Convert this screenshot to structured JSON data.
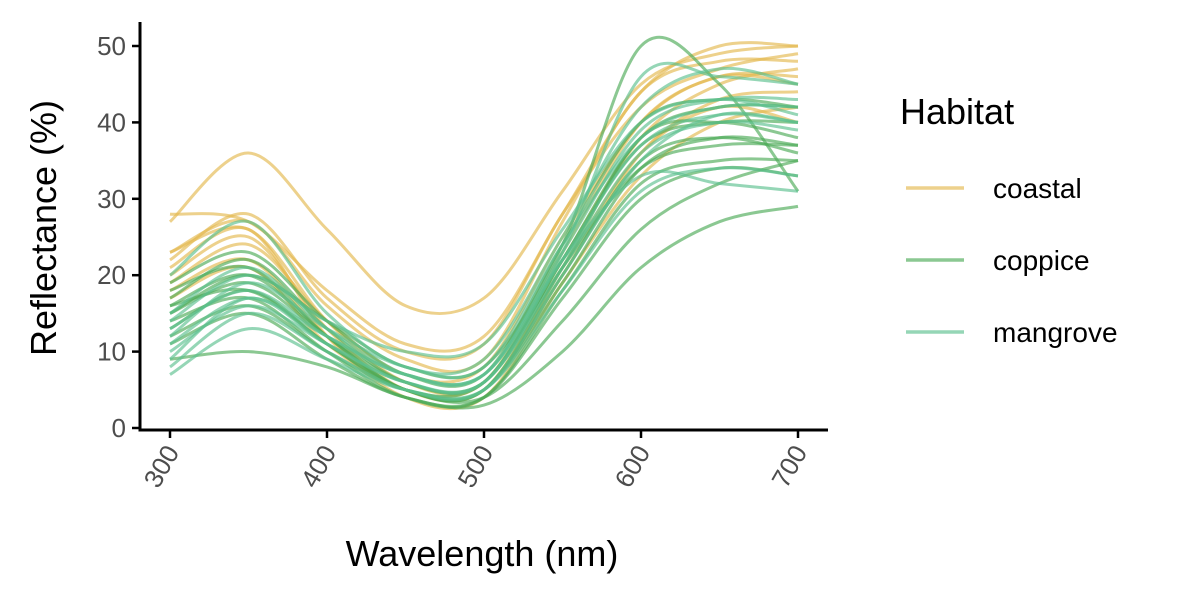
{
  "chart_data": {
    "type": "line",
    "title": "",
    "xlabel": "Wavelength (nm)",
    "ylabel": "Reflectance (%)",
    "xlim": [
      300,
      700
    ],
    "ylim": [
      0,
      50
    ],
    "x_ticks": [
      300,
      400,
      500,
      600,
      700
    ],
    "y_ticks": [
      0,
      10,
      20,
      30,
      40,
      50
    ],
    "grid": false,
    "legend": {
      "title": "Habitat",
      "position": "right",
      "entries": [
        {
          "label": "coastal",
          "color": "#e3b94f"
        },
        {
          "label": "coppice",
          "color": "#4daa57"
        },
        {
          "label": "mangrove",
          "color": "#5cc08f"
        }
      ]
    },
    "x": [
      300,
      350,
      400,
      450,
      500,
      550,
      600,
      650,
      700
    ],
    "series": [
      {
        "group": "coastal",
        "values": [
          27,
          36,
          26,
          16,
          17,
          31,
          45,
          49,
          50
        ]
      },
      {
        "group": "coastal",
        "values": [
          28,
          27,
          18,
          11,
          12,
          28,
          44,
          50,
          50
        ]
      },
      {
        "group": "coastal",
        "values": [
          23,
          27,
          16,
          9,
          9,
          27,
          44,
          48,
          48
        ]
      },
      {
        "group": "coastal",
        "values": [
          23,
          26,
          14,
          6,
          6,
          23,
          40,
          46,
          46
        ]
      },
      {
        "group": "coastal",
        "values": [
          20,
          25,
          13,
          5,
          5,
          20,
          36,
          43,
          44
        ]
      },
      {
        "group": "coastal",
        "values": [
          18,
          22,
          12,
          5,
          6,
          22,
          38,
          45,
          47
        ]
      },
      {
        "group": "coastal",
        "values": [
          22,
          28,
          17,
          10,
          11,
          28,
          42,
          47,
          49
        ]
      },
      {
        "group": "coastal",
        "values": [
          19,
          24,
          14,
          7,
          8,
          25,
          40,
          46,
          45
        ]
      },
      {
        "group": "coastal",
        "values": [
          21,
          26,
          12,
          4,
          4,
          19,
          33,
          40,
          42
        ]
      },
      {
        "group": "coastal",
        "values": [
          17,
          21,
          11,
          5,
          5,
          21,
          36,
          42,
          40
        ]
      },
      {
        "group": "coppice",
        "values": [
          16,
          18,
          11,
          5,
          4,
          14,
          26,
          32,
          35
        ]
      },
      {
        "group": "coppice",
        "values": [
          9,
          10,
          8,
          4,
          3,
          10,
          21,
          27,
          29
        ]
      },
      {
        "group": "coppice",
        "values": [
          15,
          20,
          14,
          8,
          8,
          24,
          50,
          45,
          31
        ]
      },
      {
        "group": "coppice",
        "values": [
          18,
          21,
          12,
          5,
          5,
          21,
          38,
          40,
          38
        ]
      },
      {
        "group": "coppice",
        "values": [
          14,
          17,
          10,
          4,
          4,
          18,
          32,
          35,
          35
        ]
      },
      {
        "group": "coppice",
        "values": [
          17,
          22,
          13,
          6,
          6,
          22,
          37,
          40,
          40
        ]
      },
      {
        "group": "coppice",
        "values": [
          12,
          16,
          10,
          5,
          5,
          19,
          34,
          38,
          37
        ]
      },
      {
        "group": "coppice",
        "values": [
          16,
          20,
          12,
          5,
          5,
          20,
          35,
          38,
          36
        ]
      },
      {
        "group": "coppice",
        "values": [
          13,
          18,
          11,
          5,
          6,
          22,
          38,
          42,
          42
        ]
      },
      {
        "group": "coppice",
        "values": [
          15,
          19,
          12,
          6,
          6,
          21,
          34,
          37,
          37
        ]
      },
      {
        "group": "coppice",
        "values": [
          11,
          15,
          9,
          4,
          4,
          17,
          30,
          34,
          33
        ]
      },
      {
        "group": "coppice",
        "values": [
          19,
          23,
          14,
          7,
          7,
          24,
          40,
          43,
          42
        ]
      },
      {
        "group": "mangrove",
        "values": [
          20,
          27,
          15,
          8,
          9,
          25,
          42,
          47,
          45
        ]
      },
      {
        "group": "mangrove",
        "values": [
          14,
          20,
          14,
          10,
          11,
          26,
          40,
          43,
          41
        ]
      },
      {
        "group": "mangrove",
        "values": [
          8,
          15,
          10,
          5,
          5,
          20,
          35,
          41,
          40
        ]
      },
      {
        "group": "mangrove",
        "values": [
          12,
          19,
          13,
          8,
          8,
          24,
          38,
          42,
          42
        ]
      },
      {
        "group": "mangrove",
        "values": [
          7,
          13,
          9,
          5,
          5,
          18,
          31,
          34,
          33
        ]
      },
      {
        "group": "mangrove",
        "values": [
          10,
          16,
          11,
          6,
          6,
          21,
          36,
          40,
          39
        ]
      },
      {
        "group": "mangrove",
        "values": [
          9,
          17,
          11,
          6,
          6,
          23,
          46,
          46,
          45
        ]
      },
      {
        "group": "mangrove",
        "values": [
          13,
          18,
          12,
          7,
          7,
          22,
          33,
          32,
          31
        ]
      },
      {
        "group": "mangrove",
        "values": [
          11,
          17,
          12,
          7,
          7,
          22,
          37,
          41,
          40
        ]
      },
      {
        "group": "mangrove",
        "values": [
          15,
          21,
          13,
          7,
          7,
          23,
          39,
          43,
          43
        ]
      }
    ]
  }
}
